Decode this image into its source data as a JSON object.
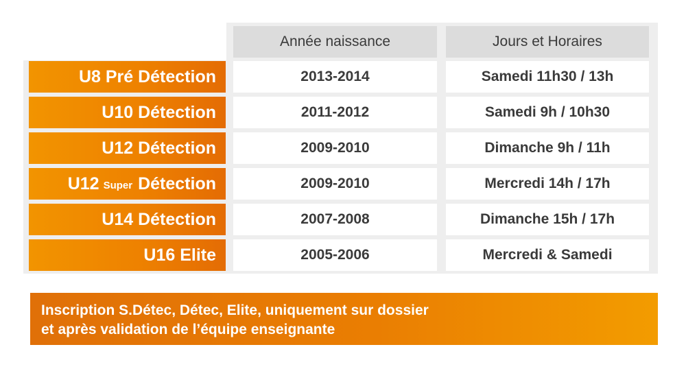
{
  "table": {
    "headers": [
      "Année naissance",
      "Jours et Horaires"
    ],
    "rows": [
      {
        "label_pre": "U8 Pré Détection",
        "label_small": "",
        "label_post": "",
        "annee": "2013-2014",
        "horaires": "Samedi 11h30 / 13h"
      },
      {
        "label_pre": "U10 Détection",
        "label_small": "",
        "label_post": "",
        "annee": "2011-2012",
        "horaires": "Samedi 9h / 10h30"
      },
      {
        "label_pre": "U12 Détection",
        "label_small": "",
        "label_post": "",
        "annee": "2009-2010",
        "horaires": "Dimanche 9h / 11h"
      },
      {
        "label_pre": "U12",
        "label_small": "Super",
        "label_post": "Détection",
        "annee": "2009-2010",
        "horaires": "Mercredi 14h / 17h"
      },
      {
        "label_pre": "U14 Détection",
        "label_small": "",
        "label_post": "",
        "annee": "2007-2008",
        "horaires": "Dimanche 15h / 17h"
      },
      {
        "label_pre": "U16 Elite",
        "label_small": "",
        "label_post": "",
        "annee": "2005-2006",
        "horaires": "Mercredi & Samedi"
      }
    ]
  },
  "banner": {
    "line1": "Inscription  S.Détec, Détec, Elite, uniquement sur dossier",
    "line2": "et après validation de l’équipe enseignante"
  },
  "colors": {
    "orange_light": "#f29400",
    "orange_dark": "#e46c04",
    "header_gray": "#dcdcdc",
    "text_dark": "#3a3a3a"
  }
}
